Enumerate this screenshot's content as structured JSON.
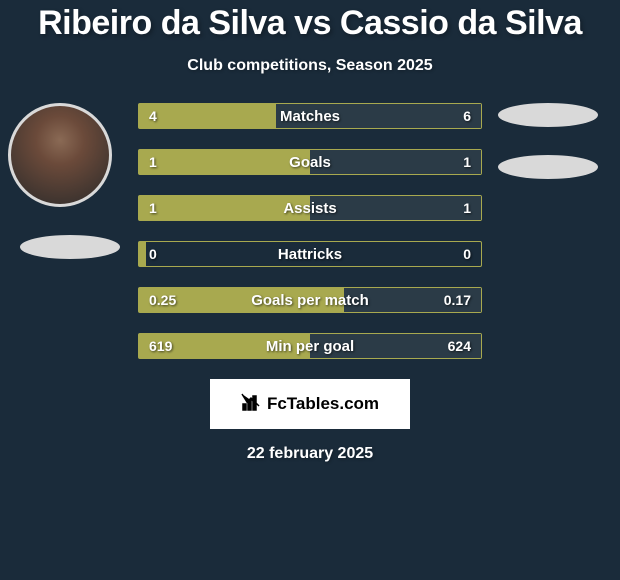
{
  "title": "Ribeiro da Silva vs Cassio da Silva",
  "subtitle": "Club competitions, Season 2025",
  "date": "22 february 2025",
  "logo_text": "FcTables.com",
  "colors": {
    "background": "#1a2b3a",
    "bar_left_fill": "#a8a94f",
    "bar_right_fill": "#2b3b47",
    "bar_border": "#a8a94f",
    "text": "#ffffff",
    "logo_bg": "#ffffff",
    "logo_text": "#000000",
    "ellipse": "#d9d9d9"
  },
  "typography": {
    "title_fontsize": 34,
    "subtitle_fontsize": 16,
    "bar_label_fontsize": 15,
    "bar_value_fontsize": 14,
    "date_fontsize": 16
  },
  "stats": [
    {
      "label": "Matches",
      "left_value": "4",
      "right_value": "6",
      "left_pct": 40,
      "right_pct": 60
    },
    {
      "label": "Goals",
      "left_value": "1",
      "right_value": "1",
      "left_pct": 50,
      "right_pct": 50
    },
    {
      "label": "Assists",
      "left_value": "1",
      "right_value": "1",
      "left_pct": 50,
      "right_pct": 50
    },
    {
      "label": "Hattricks",
      "left_value": "0",
      "right_value": "0",
      "left_pct": 2,
      "right_pct": 0
    },
    {
      "label": "Goals per match",
      "left_value": "0.25",
      "right_value": "0.17",
      "left_pct": 60,
      "right_pct": 40
    },
    {
      "label": "Min per goal",
      "left_value": "619",
      "right_value": "624",
      "left_pct": 50,
      "right_pct": 50
    }
  ]
}
